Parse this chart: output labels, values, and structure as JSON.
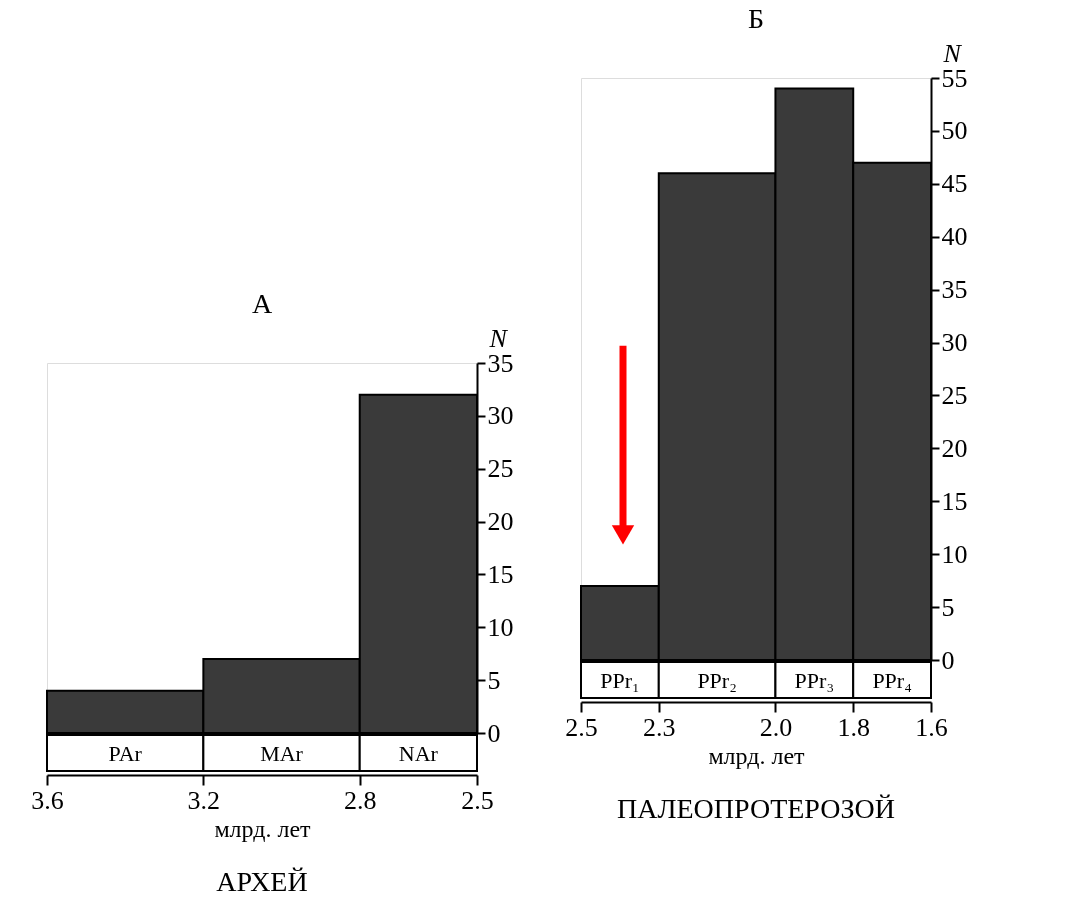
{
  "chart_data": [
    {
      "type": "histogram",
      "title": "А",
      "xlabel": "млрд. лет",
      "ylabel": "N",
      "bins": [
        3.6,
        3.2,
        2.8,
        2.5
      ],
      "values": [
        4,
        7,
        32
      ],
      "color": "#3a3a3a",
      "xlim": [
        3.6,
        2.5
      ],
      "xticks": [
        3.6,
        3.2,
        2.8,
        2.5
      ],
      "ylim": [
        0,
        35
      ],
      "yticks": [
        0,
        5,
        10,
        15,
        20,
        25,
        30,
        35
      ],
      "grid": false,
      "annotations": [
        "PAr",
        "MAr",
        "NAr",
        "АРХЕЙ"
      ]
    },
    {
      "type": "histogram",
      "title": "Б",
      "xlabel": "млрд. лет",
      "ylabel": "N",
      "bins": [
        2.5,
        2.3,
        2.0,
        1.8,
        1.6
      ],
      "values": [
        7,
        46,
        54,
        47
      ],
      "color": "#3a3a3a",
      "xlim": [
        2.5,
        1.6
      ],
      "xticks": [
        2.5,
        2.3,
        {
          "value": 2.0,
          "label": "2.0"
        },
        1.8,
        1.6
      ],
      "ylim": [
        0,
        55
      ],
      "yticks": [
        0,
        5,
        10,
        15,
        20,
        25,
        30,
        35,
        40,
        45,
        50,
        55
      ],
      "grid": false,
      "annotations": [
        "PPr₁",
        "PPr₂",
        "PPr₃",
        "PPr₄",
        "ПАЛЕОПРОТЕРОЗОЙ"
      ]
    }
  ]
}
